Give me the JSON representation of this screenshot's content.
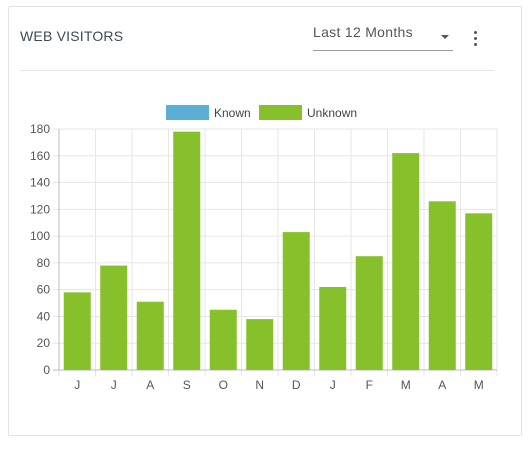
{
  "header": {
    "title": "WEB VISITORS",
    "period_select_value": "Last 12 Months",
    "more_icon": "kebab-vertical-icon"
  },
  "colors": {
    "known": "#5bafd6",
    "unknown": "#86c02a",
    "grid": "#e6e6e6",
    "axis_text": "#555555"
  },
  "chart_data": {
    "type": "bar",
    "categories": [
      "J",
      "J",
      "A",
      "S",
      "O",
      "N",
      "D",
      "J",
      "F",
      "M",
      "A",
      "M"
    ],
    "series": [
      {
        "name": "Known",
        "values": [
          0,
          0,
          0,
          0,
          0,
          0,
          0,
          0,
          0,
          0,
          0,
          0
        ]
      },
      {
        "name": "Unknown",
        "values": [
          58,
          78,
          51,
          178,
          45,
          38,
          103,
          62,
          85,
          162,
          126,
          117
        ]
      }
    ],
    "ylim": [
      0,
      180
    ],
    "yticks": [
      0,
      20,
      40,
      60,
      80,
      100,
      120,
      140,
      160,
      180
    ],
    "grid": true,
    "legend_position": "top-center"
  }
}
